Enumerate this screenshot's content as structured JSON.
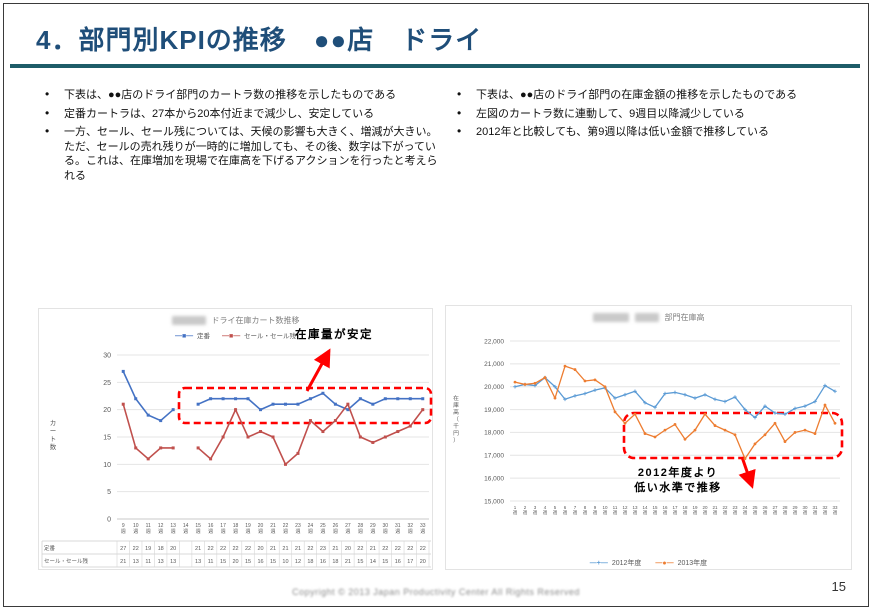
{
  "slide": {
    "title": "4．部門別KPIの推移　●●店　ドライ",
    "page_number": "15",
    "footer_copyright": "Copyright © 2013 Japan Productivity Center All Rights Reserved",
    "accent_color": "#1F4E79",
    "divider_color": "#1D5C68",
    "annotation_color": "#FF0000"
  },
  "left_bullets": [
    "下表は、●●店のドライ部門のカートラ数の推移を示したものである",
    "定番カートラは、27本から20本付近まで減少し、安定している",
    "一方、セール、セール残については、天候の影響も大きく、増減が大きい。ただ、セールの売れ残りが一時的に増加しても、その後、数字は下がっている。これは、在庫増加を現場で在庫高を下げるアクションを行ったと考えられる"
  ],
  "right_bullets": [
    "下表は、●●店のドライ部門の在庫金額の推移を示したものである",
    "左図のカートラ数に連動して、9週目以降減少している",
    "2012年と比較しても、第9週以降は低い金額で推移している"
  ],
  "chart_data": [
    {
      "type": "line",
      "title": "ドライ在庫カート数推移",
      "redacted_prefix": true,
      "ylabel": "カート数",
      "xlabel": "",
      "ylim": [
        0,
        30
      ],
      "ytick_step": 5,
      "grid": true,
      "legend_position": "top",
      "categories": [
        "9週",
        "10週",
        "11週",
        "12週",
        "13週",
        "14週",
        "15週",
        "16週",
        "17週",
        "18週",
        "19週",
        "20週",
        "21週",
        "22週",
        "23週",
        "24週",
        "25週",
        "26週",
        "27週",
        "28週",
        "29週",
        "30週",
        "31週",
        "32週",
        "33週"
      ],
      "series": [
        {
          "name": "定番",
          "color": "#4472C4",
          "values": [
            27,
            22,
            19,
            18,
            20,
            null,
            21,
            22,
            22,
            22,
            22,
            20,
            21,
            21,
            21,
            22,
            23,
            21,
            20,
            22,
            21,
            22,
            22,
            22,
            22
          ]
        },
        {
          "name": "セール・セール残",
          "color": "#C0504D",
          "values": [
            21,
            13,
            11,
            13,
            13,
            null,
            13,
            11,
            15,
            20,
            15,
            16,
            15,
            10,
            12,
            18,
            16,
            18,
            21,
            15,
            14,
            15,
            16,
            17,
            20
          ]
        }
      ],
      "data_table": true,
      "annotation": "在庫量が安定",
      "highlight_box_value_range": [
        17.5,
        24
      ],
      "highlight_box_week_range": [
        "14週",
        "33週"
      ]
    },
    {
      "type": "line",
      "title": "部門在庫高",
      "redacted_prefix": true,
      "ylabel": "在庫高（千円）",
      "xlabel": "",
      "ylim": [
        15000,
        22000
      ],
      "ytick_step": 1000,
      "grid": true,
      "legend_position": "bottom",
      "categories": [
        "1週",
        "2週",
        "3週",
        "4週",
        "5週",
        "6週",
        "7週",
        "8週",
        "9週",
        "10週",
        "11週",
        "12週",
        "13週",
        "14週",
        "15週",
        "16週",
        "17週",
        "18週",
        "19週",
        "20週",
        "21週",
        "22週",
        "23週",
        "24週",
        "25週",
        "26週",
        "27週",
        "28週",
        "29週",
        "30週",
        "31週",
        "32週",
        "33週"
      ],
      "series": [
        {
          "name": "2012年度",
          "color": "#5B9BD5",
          "marker": "+",
          "values": [
            20000,
            20100,
            20050,
            20400,
            20000,
            19450,
            19600,
            19700,
            19850,
            19950,
            19500,
            19650,
            19800,
            19300,
            19100,
            19700,
            19750,
            19650,
            19500,
            19650,
            19450,
            19350,
            19550,
            19000,
            18650,
            19150,
            18850,
            18800,
            19050,
            19150,
            19350,
            20050,
            19800
          ]
        },
        {
          "name": "2013年度",
          "color": "#ED7D31",
          "marker": "●",
          "values": [
            20200,
            20100,
            20150,
            20400,
            19500,
            20900,
            20750,
            20250,
            20300,
            20000,
            18900,
            18400,
            18800,
            17950,
            17800,
            18100,
            18350,
            17700,
            18100,
            18800,
            18300,
            18100,
            17900,
            16850,
            17500,
            17900,
            18400,
            17600,
            18000,
            18100,
            17950,
            19200,
            18400
          ]
        }
      ],
      "annotation_lines": [
        "2012年度より",
        "低い水準で推移"
      ],
      "highlight_box_value_range": [
        16900,
        18850
      ],
      "highlight_box_week_range": [
        "12週",
        "33週"
      ]
    }
  ]
}
